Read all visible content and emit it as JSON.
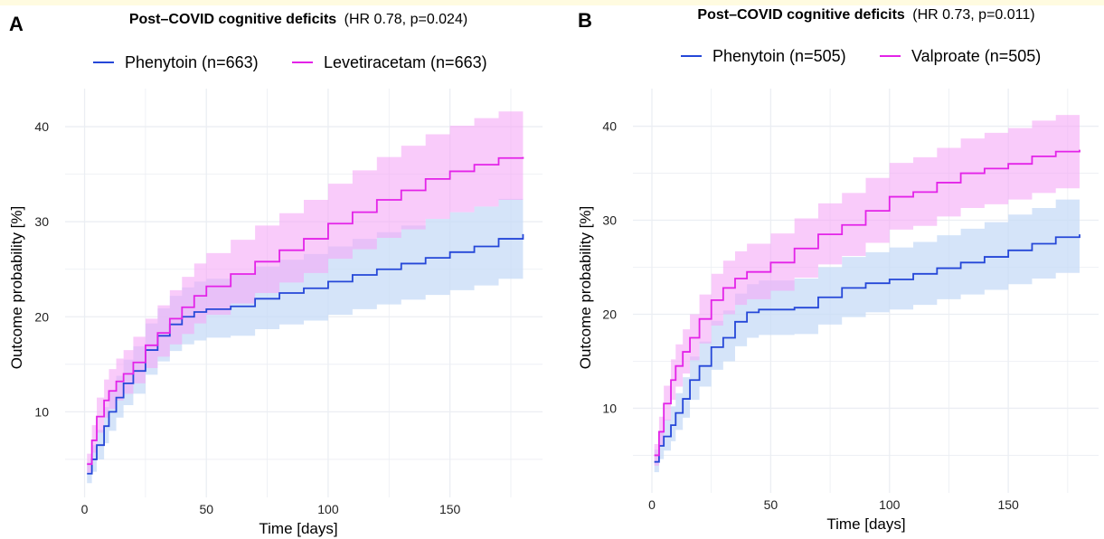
{
  "colors": {
    "phenytoin": "#2547d8",
    "comparator": "#e323e8",
    "phenytoin_band": "#c7dbf7",
    "comparator_band": "#f5a8f7",
    "overlap_band": "#d3a3f2",
    "grid": "#ebeef3"
  },
  "chart_data": [
    {
      "panel": "A",
      "type": "line",
      "title_bold": "Post–COVID cognitive deficits",
      "title_stats": "(HR 0.78, p=0.024)",
      "xlabel": "Time [days]",
      "ylabel": "Outcome probability [%]",
      "xlim": [
        -8,
        188
      ],
      "ylim": [
        1,
        44
      ],
      "xticks": [
        0,
        50,
        100,
        150
      ],
      "yticks": [
        10,
        20,
        30,
        40
      ],
      "grid": true,
      "legend_position": "top",
      "series": [
        {
          "name": "Phenytoin (n=663)",
          "color_key": "phenytoin",
          "x": [
            1,
            3,
            5,
            8,
            10,
            13,
            16,
            20,
            25,
            30,
            35,
            40,
            45,
            50,
            60,
            70,
            80,
            90,
            100,
            110,
            120,
            130,
            140,
            150,
            160,
            170,
            180
          ],
          "y": [
            3.5,
            5,
            6.5,
            8.5,
            10,
            11.5,
            13,
            14.3,
            16.5,
            18,
            19.2,
            20,
            20.5,
            20.8,
            21.1,
            21.9,
            22.5,
            23,
            23.7,
            24.4,
            25,
            25.6,
            26.2,
            26.8,
            27.4,
            28.2,
            28.7
          ],
          "lower": [
            2.5,
            3.7,
            5,
            6.7,
            8,
            9.4,
            10.7,
            11.9,
            13.9,
            15.3,
            16.4,
            17.1,
            17.5,
            17.8,
            18,
            18.7,
            19.2,
            19.6,
            20.2,
            20.8,
            21.3,
            21.8,
            22.3,
            22.8,
            23.3,
            24,
            24.8
          ],
          "upper": [
            4.7,
            6.5,
            8.1,
            10.5,
            12.1,
            13.8,
            15.5,
            16.9,
            19.3,
            20.9,
            22.2,
            23.1,
            23.7,
            24,
            24.4,
            25.3,
            26,
            26.6,
            27.4,
            28.2,
            28.9,
            29.6,
            30.3,
            31,
            31.6,
            32.4,
            33
          ]
        },
        {
          "name": "Levetiracetam (n=663)",
          "color_key": "comparator",
          "x": [
            1,
            3,
            5,
            8,
            10,
            13,
            16,
            20,
            25,
            30,
            35,
            40,
            45,
            50,
            60,
            70,
            80,
            90,
            100,
            110,
            120,
            130,
            140,
            150,
            160,
            170,
            180
          ],
          "y": [
            4.5,
            7,
            9.5,
            11.2,
            12.2,
            13.2,
            14,
            15.2,
            17,
            18.3,
            19.8,
            21,
            22.2,
            23.2,
            24.5,
            25.8,
            27,
            28.2,
            29.8,
            31,
            32.3,
            33.3,
            34.5,
            35.3,
            36,
            36.7,
            36.8
          ],
          "lower": [
            3.6,
            5.7,
            7.8,
            9.4,
            10.3,
            11.2,
            11.9,
            13,
            14.6,
            15.8,
            17.1,
            18.2,
            19.3,
            20.2,
            21.4,
            22.5,
            23.6,
            24.6,
            26.1,
            27.1,
            28.3,
            29.2,
            30.3,
            31,
            31.6,
            32.3,
            32.5
          ],
          "upper": [
            5.6,
            8.6,
            11.5,
            13.4,
            14.5,
            15.6,
            16.5,
            17.9,
            19.8,
            21.2,
            22.8,
            24.2,
            25.6,
            26.7,
            28.1,
            29.6,
            30.9,
            32.3,
            34,
            35.4,
            36.8,
            38,
            39.2,
            40.1,
            40.9,
            41.6,
            41.7
          ]
        }
      ]
    },
    {
      "panel": "B",
      "type": "line",
      "title_bold": "Post–COVID cognitive deficits",
      "title_stats": "(HR 0.73, p=0.011)",
      "xlabel": "Time [days]",
      "ylabel": "Outcome probability [%]",
      "xlim": [
        -8,
        188
      ],
      "ylim": [
        1,
        44
      ],
      "xticks": [
        0,
        50,
        100,
        150
      ],
      "yticks": [
        10,
        20,
        30,
        40
      ],
      "grid": true,
      "legend_position": "top",
      "series": [
        {
          "name": "Phenytoin (n=505)",
          "color_key": "phenytoin",
          "x": [
            1,
            3,
            5,
            8,
            10,
            13,
            16,
            20,
            25,
            30,
            35,
            40,
            45,
            50,
            60,
            70,
            80,
            90,
            100,
            110,
            120,
            130,
            140,
            150,
            160,
            170,
            180
          ],
          "y": [
            4.3,
            6,
            7,
            8.2,
            9.5,
            11,
            13,
            14.5,
            16.5,
            17.5,
            19.2,
            20.2,
            20.5,
            20.5,
            20.7,
            21.8,
            22.8,
            23.3,
            23.7,
            24.3,
            24.9,
            25.5,
            26.1,
            26.8,
            27.5,
            28.2,
            28.5
          ],
          "lower": [
            3.2,
            4.6,
            5.5,
            6.5,
            7.7,
            9,
            10.9,
            12.3,
            14.1,
            15,
            16.6,
            17.5,
            17.8,
            17.8,
            17.9,
            18.9,
            19.7,
            20.2,
            20.5,
            21,
            21.6,
            22.1,
            22.6,
            23.2,
            23.8,
            24.4,
            24.8
          ],
          "upper": [
            5.6,
            7.6,
            8.8,
            10.2,
            11.6,
            13.3,
            15.5,
            17.1,
            19.3,
            20.4,
            22.2,
            23.2,
            23.6,
            23.6,
            23.8,
            25,
            26.1,
            26.6,
            27.1,
            27.7,
            28.4,
            29.1,
            29.8,
            30.6,
            31.3,
            32.2,
            32.6
          ]
        },
        {
          "name": "Valproate (n=505)",
          "color_key": "comparator",
          "x": [
            1,
            3,
            5,
            8,
            10,
            13,
            16,
            20,
            25,
            30,
            35,
            40,
            45,
            50,
            60,
            70,
            80,
            90,
            100,
            110,
            120,
            130,
            140,
            150,
            160,
            170,
            180
          ],
          "y": [
            5,
            7.5,
            10.5,
            13,
            14.5,
            16,
            17.5,
            19.5,
            21.5,
            22.8,
            23.8,
            24.5,
            24.5,
            25.5,
            27,
            28.5,
            29.5,
            31,
            32.5,
            33,
            34,
            35,
            35.5,
            36,
            36.8,
            37.3,
            37.5
          ],
          "lower": [
            3.9,
            6,
            8.7,
            10.9,
            12.3,
            13.7,
            15.1,
            16.9,
            18.8,
            20,
            21,
            21.6,
            21.6,
            22.5,
            23.9,
            25.3,
            26.2,
            27.6,
            29,
            29.4,
            30.4,
            31.3,
            31.7,
            32.2,
            32.9,
            33.4,
            33.6
          ],
          "upper": [
            6.2,
            9.1,
            12.4,
            15.2,
            16.8,
            18.4,
            20,
            22.1,
            24.3,
            25.7,
            26.7,
            27.5,
            27.5,
            28.6,
            30.2,
            31.8,
            32.9,
            34.5,
            36.1,
            36.7,
            37.7,
            38.7,
            39.3,
            39.8,
            40.6,
            41.2,
            41.5
          ]
        }
      ]
    }
  ]
}
